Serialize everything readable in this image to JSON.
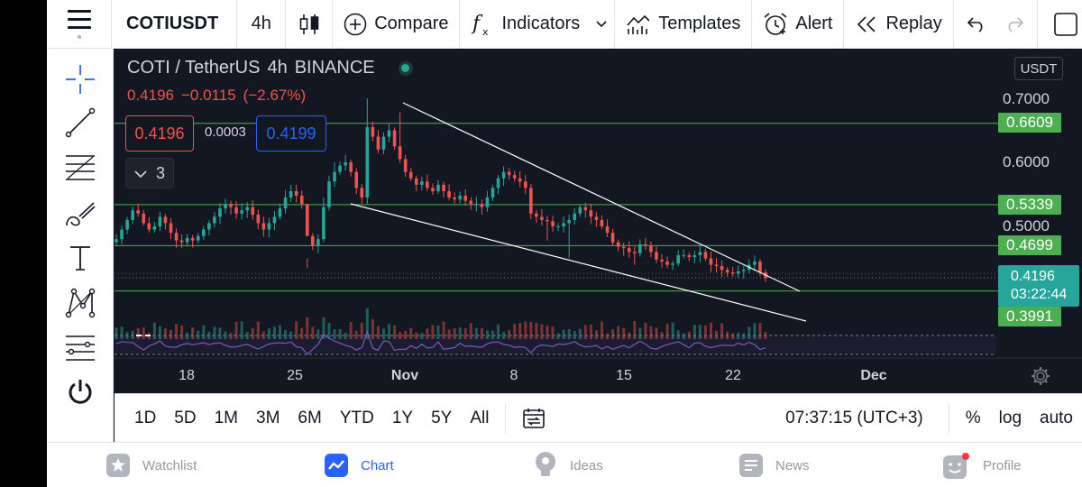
{
  "toolbar": {
    "symbol": "COTIUSDT",
    "interval": "4h",
    "compare_label": "Compare",
    "indicators_label": "Indicators",
    "templates_label": "Templates",
    "alert_label": "Alert",
    "replay_label": "Replay"
  },
  "legend": {
    "pair": "COTI / TetherUS",
    "interval": "4h",
    "exchange": "BINANCE",
    "price": "0.4196",
    "change": "−0.0115",
    "change_pct": "(−2.67%)",
    "bid": "0.4196",
    "spread": "0.0003",
    "ask": "0.4199",
    "collapsed_count": "3"
  },
  "currency": "USDT",
  "colors": {
    "up": "#26a69a",
    "down": "#ef5350",
    "level": "#4caf50",
    "trendline": "#ffffff",
    "rsi": "#7e57c2",
    "accent": "#2962ff"
  },
  "chart_data": {
    "type": "candlestick",
    "symbol": "COTIUSDT",
    "interval": "4h",
    "exchange": "BINANCE",
    "x_tick_labels": [
      "18",
      "25",
      "Nov",
      "8",
      "15",
      "22",
      "Dec"
    ],
    "y_tick_labels": [
      "0.7000",
      "0.6000",
      "0.5000"
    ],
    "ylim": [
      0.355,
      0.76
    ],
    "horizontal_levels": [
      0.6609,
      0.5339,
      0.4699,
      0.3991
    ],
    "current_price": 0.4196,
    "countdown": "03:22:44",
    "close_series": [
      0.48,
      0.495,
      0.51,
      0.525,
      0.52,
      0.505,
      0.495,
      0.5,
      0.515,
      0.505,
      0.49,
      0.478,
      0.475,
      0.482,
      0.478,
      0.485,
      0.495,
      0.505,
      0.515,
      0.528,
      0.535,
      0.53,
      0.52,
      0.525,
      0.53,
      0.518,
      0.505,
      0.495,
      0.505,
      0.515,
      0.528,
      0.545,
      0.555,
      0.548,
      0.535,
      0.485,
      0.47,
      0.48,
      0.53,
      0.57,
      0.585,
      0.595,
      0.6,
      0.585,
      0.56,
      0.545,
      0.655,
      0.64,
      0.62,
      0.64,
      0.65,
      0.625,
      0.605,
      0.585,
      0.575,
      0.565,
      0.57,
      0.56,
      0.555,
      0.565,
      0.555,
      0.545,
      0.542,
      0.548,
      0.54,
      0.535,
      0.535,
      0.53,
      0.545,
      0.56,
      0.575,
      0.585,
      0.58,
      0.575,
      0.57,
      0.56,
      0.52,
      0.515,
      0.51,
      0.508,
      0.5,
      0.5,
      0.505,
      0.51,
      0.52,
      0.53,
      0.525,
      0.515,
      0.51,
      0.5,
      0.49,
      0.475,
      0.468,
      0.466,
      0.46,
      0.458,
      0.472,
      0.47,
      0.46,
      0.448,
      0.445,
      0.44,
      0.442,
      0.455,
      0.455,
      0.452,
      0.455,
      0.46,
      0.45,
      0.44,
      0.438,
      0.432,
      0.428,
      0.426,
      0.43,
      0.432,
      0.44,
      0.445,
      0.428,
      0.4196
    ],
    "rsi_range": [
      20,
      80
    ],
    "legend": "none",
    "grid": false,
    "annotations": [
      "falling wedge trendlines"
    ]
  },
  "ranges": [
    "1D",
    "5D",
    "1M",
    "3M",
    "6M",
    "YTD",
    "1Y",
    "5Y",
    "All"
  ],
  "clock": "07:37:15 (UTC+3)",
  "scale_options": {
    "percent": "%",
    "log": "log",
    "auto": "auto"
  },
  "bottom_nav": {
    "watchlist": "Watchlist",
    "chart": "Chart",
    "ideas": "Ideas",
    "news": "News",
    "profile": "Profile"
  }
}
